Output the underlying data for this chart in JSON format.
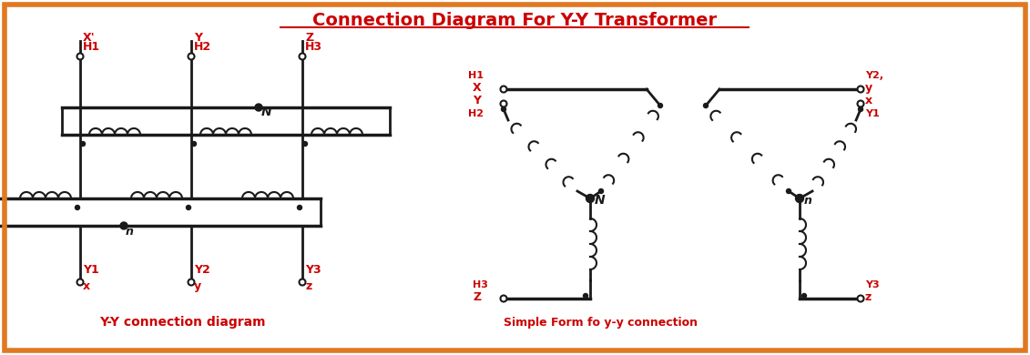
{
  "title": "Connection Diagram For Y-Y Transformer",
  "title_color": "#cc0000",
  "bg_color": "#ffffff",
  "border_color": "#e07820",
  "line_color": "#1a1a1a",
  "red_color": "#cc0000",
  "label_left": "Y-Y connection diagram",
  "label_right": "Simple Form fo y-y connection"
}
